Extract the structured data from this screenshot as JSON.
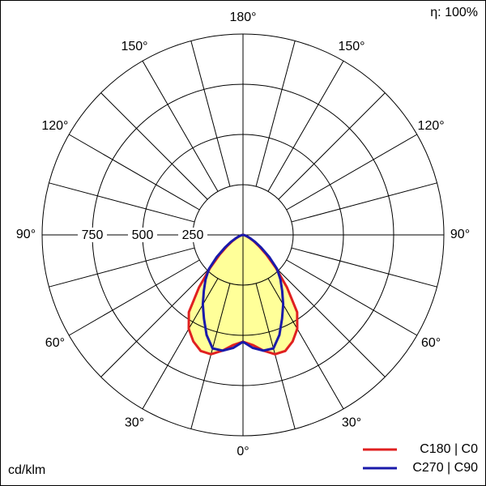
{
  "chart_data": {
    "type": "polar",
    "annotation": "η: 100%",
    "unit_label": "cd/klm",
    "rlim": [
      0,
      1000
    ],
    "rticks": [
      250,
      500,
      750
    ],
    "angle_step": 15,
    "angleticks": [
      {
        "value": 0,
        "label": "0°"
      },
      {
        "value": 30,
        "label": "30°"
      },
      {
        "value": 60,
        "label": "60°"
      },
      {
        "value": 90,
        "label": "90°"
      },
      {
        "value": 120,
        "label": "120°"
      },
      {
        "value": 150,
        "label": "150°"
      },
      {
        "value": 180,
        "label": "180°"
      }
    ],
    "gamma": [
      0,
      5,
      10,
      15,
      20,
      25,
      30,
      35,
      40,
      45,
      50,
      55,
      60,
      65,
      70,
      75,
      80,
      85,
      90
    ],
    "series": [
      {
        "name": "C180 | C0",
        "color": "#e02020",
        "fill": "#ffff99",
        "values": [
          532,
          550,
          585,
          615,
          615,
          585,
          540,
          470,
          340,
          230,
          150,
          95,
          60,
          35,
          20,
          10,
          5,
          2,
          0
        ]
      },
      {
        "name": "C270 | C90",
        "color": "#1a1aaa",
        "values": [
          532,
          565,
          585,
          585,
          530,
          460,
          400,
          340,
          290,
          240,
          170,
          110,
          70,
          40,
          22,
          12,
          5,
          2,
          0
        ]
      }
    ]
  }
}
